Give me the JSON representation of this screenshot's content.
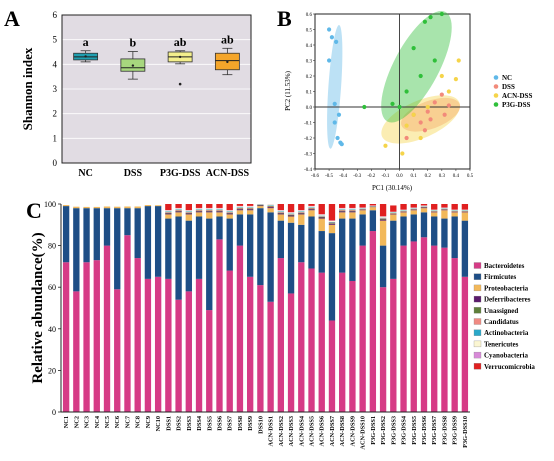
{
  "panel_labels": [
    "A",
    "B",
    "C"
  ],
  "chart_data": [
    {
      "type": "box",
      "panel": "A",
      "ylabel": "Shannon index",
      "ylim": [
        0,
        6
      ],
      "yticks": [
        "0",
        "1",
        "2",
        "3",
        "4",
        "5",
        "6"
      ],
      "categories": [
        "NC",
        "DSS",
        "P3G-DSS",
        "ACN-DSS"
      ],
      "colors": [
        "#1f9fb0",
        "#a7d77e",
        "#f4ef8c",
        "#f4a52a"
      ],
      "grid": true,
      "boxes": [
        {
          "min": 4.1,
          "q1": 4.18,
          "median": 4.3,
          "q3": 4.45,
          "max": 4.55,
          "mean": 4.32,
          "outliers": []
        },
        {
          "min": 3.4,
          "q1": 3.72,
          "median": 3.86,
          "q3": 4.22,
          "max": 4.52,
          "mean": 3.95,
          "outliers": []
        },
        {
          "min": 4.02,
          "q1": 4.1,
          "median": 4.3,
          "q3": 4.5,
          "max": 4.55,
          "mean": 4.3,
          "outliers": [
            3.2
          ]
        },
        {
          "min": 3.58,
          "q1": 3.78,
          "median": 4.15,
          "q3": 4.45,
          "max": 4.65,
          "mean": 4.1,
          "outliers": []
        }
      ],
      "significance": [
        "a",
        "b",
        "ab",
        "ab"
      ]
    },
    {
      "type": "scatter",
      "panel": "B",
      "xlabel": "PC1 (30.14%)",
      "ylabel": "PC2 (11.53%)",
      "xlim": [
        -0.6,
        0.5
      ],
      "ylim": [
        -0.4,
        0.6
      ],
      "xticks": [
        "-0.6",
        "-0.5",
        "-0.4",
        "-0.3",
        "-0.2",
        "-0.1",
        "0.0",
        "0.1",
        "0.2",
        "0.3",
        "0.4",
        "0.5"
      ],
      "yticks": [
        "-0.4",
        "-0.3",
        "-0.2",
        "-0.1",
        "0.0",
        "0.1",
        "0.2",
        "0.3",
        "0.4",
        "0.5",
        "0.6"
      ],
      "legend_position": "right",
      "series": [
        {
          "name": "NC",
          "color": "#5fb8e8",
          "points": [
            [
              -0.5,
              0.5
            ],
            [
              -0.48,
              0.45
            ],
            [
              -0.45,
              0.42
            ],
            [
              -0.5,
              0.3
            ],
            [
              -0.46,
              0.02
            ],
            [
              -0.43,
              -0.05
            ],
            [
              -0.44,
              -0.2
            ],
            [
              -0.42,
              -0.23
            ],
            [
              -0.41,
              -0.24
            ],
            [
              -0.46,
              -0.1
            ]
          ],
          "ellipse": {
            "cx": -0.46,
            "cy": 0.13,
            "rx": 0.045,
            "ry": 0.4,
            "angle": 4
          }
        },
        {
          "name": "DSS",
          "color": "#f28a7a",
          "points": [
            [
              0.1,
              -0.05
            ],
            [
              0.15,
              -0.1
            ],
            [
              0.2,
              -0.03
            ],
            [
              0.25,
              0.03
            ],
            [
              0.3,
              0.08
            ],
            [
              0.32,
              -0.05
            ],
            [
              0.05,
              -0.2
            ],
            [
              0.18,
              -0.15
            ],
            [
              0.35,
              0.01
            ],
            [
              0.22,
              -0.08
            ]
          ],
          "ellipse": {
            "cx": 0.22,
            "cy": -0.05,
            "rx": 0.22,
            "ry": 0.09,
            "angle": -20
          }
        },
        {
          "name": "ACN-DSS",
          "color": "#f5d44a",
          "points": [
            [
              -0.1,
              -0.25
            ],
            [
              0.02,
              -0.3
            ],
            [
              0.1,
              -0.05
            ],
            [
              0.2,
              0.0
            ],
            [
              0.3,
              0.2
            ],
            [
              0.4,
              0.18
            ],
            [
              0.35,
              0.1
            ],
            [
              0.42,
              0.3
            ],
            [
              0.15,
              -0.2
            ],
            [
              0.05,
              -0.12
            ]
          ],
          "ellipse": {
            "cx": 0.15,
            "cy": -0.08,
            "rx": 0.3,
            "ry": 0.12,
            "angle": -24
          }
        },
        {
          "name": "P3G-DSS",
          "color": "#2fbf3a",
          "points": [
            [
              -0.25,
              0.0
            ],
            [
              -0.05,
              0.02
            ],
            [
              0.0,
              0.0
            ],
            [
              0.05,
              0.1
            ],
            [
              0.1,
              0.38
            ],
            [
              0.15,
              0.2
            ],
            [
              0.18,
              0.55
            ],
            [
              0.22,
              0.58
            ],
            [
              0.3,
              0.6
            ],
            [
              0.25,
              0.3
            ]
          ],
          "ellipse": {
            "cx": 0.12,
            "cy": 0.26,
            "rx": 0.16,
            "ry": 0.4,
            "angle": 28
          }
        }
      ]
    },
    {
      "type": "stacked_bar",
      "panel": "C",
      "ylabel": "Relative abundance(%)",
      "ylim": [
        0,
        100
      ],
      "yticks": [
        "0",
        "20",
        "40",
        "60",
        "80",
        "100"
      ],
      "legend_position": "right",
      "categories": [
        "NC1",
        "NC2",
        "NC3",
        "NC4",
        "NC5",
        "NC6",
        "NC7",
        "NC8",
        "NC9",
        "NC10",
        "DSS1",
        "DSS2",
        "DSS3",
        "DSS4",
        "DSS5",
        "DSS6",
        "DSS7",
        "DSS8",
        "DSS9",
        "DSS10",
        "ACN-DSS1",
        "ACN-DSS2",
        "ACN-DSS3",
        "ACN-DSS4",
        "ACN-DSS5",
        "ACN-DSS6",
        "ACN-DSS7",
        "ACN-DSS8",
        "ACN-DSS9",
        "ACN-DSS10",
        "P3G-DSS1",
        "P3G-DSS2",
        "P3G-DSS3",
        "P3G-DSS4",
        "P3G-DSS5",
        "P3G-DSS6",
        "P3G-DSS7",
        "P3G-DSS8",
        "P3G-DSS9",
        "P3G-DSS10"
      ],
      "series": [
        {
          "name": "Bacteroidetes",
          "color": "#d63b86",
          "values": [
            72,
            58,
            72,
            73,
            80,
            59,
            85,
            74,
            64,
            65,
            64,
            54,
            58,
            64,
            49,
            83,
            68,
            80,
            65,
            61,
            53,
            74,
            57,
            72,
            69,
            67,
            44,
            67,
            63,
            80,
            87,
            60,
            64,
            80,
            82,
            84,
            80,
            79,
            74,
            65
          ]
        },
        {
          "name": "Firmicutes",
          "color": "#1e4e86",
          "values": [
            27,
            40,
            26,
            25,
            18,
            39,
            13,
            24,
            35,
            34,
            29,
            40,
            34,
            30,
            44,
            11,
            25,
            15,
            30,
            37,
            43,
            18,
            34,
            18,
            25,
            20,
            42,
            26,
            30,
            15,
            10,
            20,
            28,
            14,
            13,
            12,
            14,
            14,
            20,
            27
          ]
        },
        {
          "name": "Proteobacteria",
          "color": "#f2b85a",
          "values": [
            0.5,
            0.7,
            0.6,
            0.6,
            0.8,
            0.7,
            0.8,
            0.8,
            0.5,
            0.4,
            2,
            2,
            3,
            2,
            3,
            2,
            2,
            2,
            2,
            1,
            2,
            3,
            3,
            5,
            3,
            6,
            4,
            3,
            3,
            2,
            1.5,
            12,
            3,
            2,
            2,
            2,
            2,
            4,
            2,
            4
          ]
        },
        {
          "name": "Deferribacteres",
          "color": "#5b1a6b",
          "values": [
            0,
            0,
            0,
            0,
            0,
            0,
            0,
            0,
            0,
            0,
            0.5,
            0.5,
            0.5,
            0.5,
            0.5,
            0.5,
            0.5,
            0.5,
            0.5,
            0.3,
            0.5,
            0.5,
            0.5,
            0.5,
            0.5,
            0.5,
            0.5,
            0.5,
            0.5,
            0.3,
            0.2,
            0.5,
            0.3,
            0.3,
            0.3,
            0.3,
            0.3,
            0.3,
            0.3,
            0.3
          ]
        },
        {
          "name": "Unassigned",
          "color": "#5e7f3a",
          "values": [
            0,
            0,
            0,
            0,
            0,
            0,
            0,
            0,
            0,
            0,
            0.3,
            0.3,
            0.3,
            0.3,
            0.3,
            0.3,
            0.3,
            0.3,
            0.3,
            0.2,
            0.3,
            0.3,
            0.3,
            0.3,
            0.3,
            0.3,
            0.3,
            0.3,
            0.3,
            0.2,
            0.1,
            0.3,
            0.2,
            0.2,
            0.2,
            0.2,
            0.2,
            0.2,
            0.2,
            0.2
          ]
        },
        {
          "name": "Candidatus",
          "color": "#f08a82",
          "values": [
            0,
            0,
            0,
            0,
            0,
            0,
            0,
            0,
            0,
            0,
            0.3,
            0.3,
            0.3,
            0.3,
            0.3,
            0.3,
            0.3,
            0.3,
            0.3,
            0.2,
            0.3,
            0.3,
            0.3,
            0.3,
            0.3,
            0.3,
            0.3,
            0.3,
            0.3,
            0.2,
            0.1,
            0.3,
            0.2,
            0.2,
            0.2,
            0.2,
            0.2,
            0.2,
            0.2,
            0.2
          ]
        },
        {
          "name": "Actinobacteria",
          "color": "#2aa8c9",
          "values": [
            0,
            0,
            0,
            0,
            0,
            0,
            0,
            0,
            0,
            0,
            0.3,
            0.3,
            0.3,
            0.3,
            0.3,
            0.3,
            0.3,
            0.3,
            0.3,
            0.2,
            0.3,
            0.3,
            0.3,
            0.3,
            0.3,
            0.3,
            0.3,
            0.3,
            0.3,
            0.2,
            0.1,
            0.3,
            0.2,
            0.2,
            0.2,
            0.2,
            0.2,
            0.2,
            0.2,
            0.2
          ]
        },
        {
          "name": "Tenericutes",
          "color": "#fbf6d2",
          "values": [
            0,
            0,
            0,
            0,
            0,
            0,
            0,
            0,
            0,
            0,
            0.5,
            0.5,
            0.5,
            0.5,
            0.5,
            0.5,
            0.5,
            0.5,
            0.5,
            0.3,
            0.5,
            0.5,
            0.5,
            0.5,
            0.5,
            0.5,
            0.5,
            0.5,
            0.5,
            0.3,
            0.2,
            0.5,
            0.3,
            0.3,
            0.3,
            0.3,
            0.3,
            0.3,
            0.3,
            0.3
          ]
        },
        {
          "name": "Cyanobacteria",
          "color": "#d88ad8",
          "values": [
            0,
            0,
            0,
            0,
            0,
            0,
            0,
            0,
            0,
            0,
            0.2,
            0.2,
            0.2,
            0.2,
            0.2,
            0.2,
            0.2,
            0.2,
            0.2,
            0.1,
            0.2,
            0.2,
            0.2,
            0.2,
            0.2,
            0.2,
            0.2,
            0.2,
            0.2,
            0.1,
            0.1,
            0.2,
            0.1,
            0.1,
            0.1,
            0.1,
            0.1,
            0.1,
            0.1,
            0.1
          ]
        },
        {
          "name": "Verrucomicrobia",
          "color": "#e02020",
          "values": [
            0,
            0,
            0,
            0,
            0,
            0,
            0,
            0,
            0,
            0,
            3,
            2,
            3,
            2,
            2,
            2,
            3,
            1,
            1,
            0,
            0,
            3,
            4,
            3,
            1,
            5,
            8,
            2,
            2,
            2,
            1,
            6,
            3,
            3,
            2,
            1,
            3,
            2,
            3,
            3
          ]
        }
      ]
    }
  ]
}
